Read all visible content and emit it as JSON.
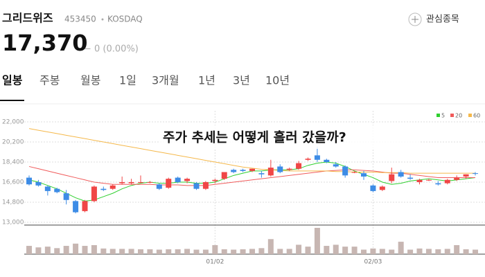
{
  "header": {
    "name": "그리드위즈",
    "code": "453450",
    "market": "KOSDAQ",
    "watch": "관심종목",
    "price": "17,370",
    "change": "− 0 (0.00%)"
  },
  "tabs": [
    "일봉",
    "주봉",
    "월봉",
    "1일",
    "3개월",
    "1년",
    "3년",
    "10년"
  ],
  "chart_data": {
    "type": "candlestick",
    "annotation": "주가 추세는 어떻게 흘러 갔을까?",
    "categories": [
      null,
      null,
      null,
      null,
      null,
      null,
      null,
      null,
      null,
      null,
      null,
      null,
      null,
      null,
      null,
      null,
      null,
      null,
      null,
      null,
      "01/02",
      null,
      null,
      null,
      null,
      null,
      null,
      null,
      null,
      null,
      null,
      null,
      null,
      null,
      null,
      null,
      null,
      "02/03",
      null,
      null,
      null,
      null,
      null,
      null,
      null,
      null,
      null,
      null,
      null
    ],
    "open": [
      17000,
      16600,
      16200,
      16000,
      15600,
      14900,
      14000,
      14900,
      16000,
      16000,
      16500,
      16500,
      16600,
      16600,
      16400,
      16100,
      17000,
      16700,
      16500,
      16000,
      16700,
      16900,
      17700,
      17700,
      17600,
      17400,
      17200,
      18000,
      17700,
      17800,
      18600,
      19000,
      18600,
      18200,
      18000,
      17500,
      17400,
      16300,
      15900,
      16700,
      17500,
      17000,
      16600,
      16800,
      16500,
      16500,
      16800,
      17100,
      17400
    ],
    "high": [
      17200,
      16800,
      16300,
      16100,
      15900,
      15000,
      15000,
      16300,
      16200,
      16400,
      17100,
      16900,
      17200,
      16700,
      16500,
      17000,
      17100,
      17000,
      16600,
      16700,
      16900,
      17500,
      17800,
      17800,
      17800,
      17600,
      18600,
      18200,
      17900,
      18500,
      18800,
      19800,
      18700,
      18400,
      18100,
      17600,
      17600,
      16400,
      16300,
      17900,
      17700,
      17300,
      16900,
      16900,
      16700,
      16900,
      17200,
      17300,
      17500
    ],
    "low": [
      16300,
      16200,
      15400,
      15600,
      14600,
      13800,
      13900,
      14800,
      15800,
      15900,
      16400,
      16400,
      16500,
      16500,
      15900,
      16000,
      16500,
      16500,
      15900,
      15900,
      16500,
      16800,
      17400,
      17500,
      17500,
      17000,
      17100,
      17400,
      17600,
      17700,
      18500,
      18400,
      18300,
      17900,
      17000,
      17400,
      16800,
      15700,
      15800,
      16500,
      17000,
      16800,
      16400,
      16700,
      16300,
      16400,
      16700,
      16900,
      17200
    ],
    "close": [
      16400,
      16300,
      15800,
      15700,
      15000,
      13900,
      14900,
      16200,
      15900,
      16300,
      16600,
      16600,
      16600,
      16600,
      16000,
      16900,
      16600,
      16900,
      16000,
      16600,
      16800,
      17500,
      17500,
      17600,
      17800,
      17300,
      17900,
      17500,
      17800,
      18300,
      18700,
      18600,
      18400,
      18000,
      17200,
      17500,
      17100,
      15800,
      16200,
      17300,
      17100,
      16900,
      16800,
      16800,
      16400,
      16800,
      17000,
      17300,
      17370
    ],
    "volume": [
      22000,
      18000,
      20000,
      16000,
      22000,
      28000,
      22000,
      24000,
      15000,
      14000,
      14000,
      14000,
      13000,
      13000,
      12000,
      13000,
      13000,
      14000,
      12000,
      12000,
      24000,
      13000,
      12000,
      13000,
      14000,
      16000,
      40000,
      14000,
      14000,
      25000,
      20000,
      70000,
      22000,
      25000,
      20000,
      20000,
      12000,
      15000,
      14000,
      12000,
      33000,
      12000,
      15000,
      14000,
      13000,
      14000,
      24000,
      13000,
      12000
    ],
    "up_color": "#f04646",
    "down_color": "#3d8ce6",
    "volume_color": "#c7b6b2",
    "series": [
      {
        "name": "5",
        "color": "#2fcf2f",
        "values": [
          16800,
          16600,
          16300,
          16000,
          15600,
          15200,
          14900,
          15000,
          15300,
          15600,
          16000,
          16300,
          16500,
          16600,
          16500,
          16500,
          16600,
          16600,
          16500,
          16500,
          16600,
          16900,
          17200,
          17400,
          17600,
          17600,
          17700,
          17700,
          17700,
          17800,
          18100,
          18300,
          18400,
          18300,
          18000,
          17600,
          17300,
          17000,
          16600,
          16400,
          16500,
          16700,
          16800,
          16900,
          16800,
          16700,
          16800,
          16900,
          17000
        ]
      },
      {
        "name": "20",
        "color": "#f05a5a",
        "values": [
          18000,
          17800,
          17600,
          17400,
          17200,
          17000,
          16800,
          16600,
          16500,
          16400,
          16400,
          16400,
          16400,
          16400,
          16350,
          16350,
          16350,
          16300,
          16300,
          16300,
          16400,
          16500,
          16600,
          16700,
          16800,
          16900,
          17000,
          17100,
          17200,
          17300,
          17400,
          17500,
          17600,
          17650,
          17700,
          17700,
          17650,
          17600,
          17500,
          17400,
          17400,
          17300,
          17200,
          17100,
          17000,
          17000,
          17000,
          17000,
          17000
        ]
      },
      {
        "name": "60",
        "color": "#f5b84a",
        "values": [
          21400,
          21250,
          21100,
          20950,
          20800,
          20650,
          20500,
          20350,
          20200,
          20050,
          19900,
          19750,
          19600,
          19450,
          19300,
          19150,
          19000,
          18850,
          18700,
          18550,
          18400,
          18250,
          18100,
          17950,
          17850,
          17750,
          17700,
          17650,
          17600,
          17600,
          17600,
          17600,
          17600,
          17550,
          17550,
          17500,
          17500,
          17500,
          17450,
          17450,
          17450,
          17400,
          17400,
          17400,
          17400,
          17400,
          17400,
          17400,
          17400
        ]
      }
    ],
    "ylim": [
      13000,
      22000
    ],
    "yticks": [
      {
        "value": 22000,
        "label": "22,000"
      },
      {
        "value": 20200,
        "label": "20,200"
      },
      {
        "value": 18400,
        "label": "18,400"
      },
      {
        "value": 16600,
        "label": "16,600"
      },
      {
        "value": 14800,
        "label": "14,800"
      },
      {
        "value": 13000,
        "label": "13,000"
      }
    ],
    "grid": true
  }
}
